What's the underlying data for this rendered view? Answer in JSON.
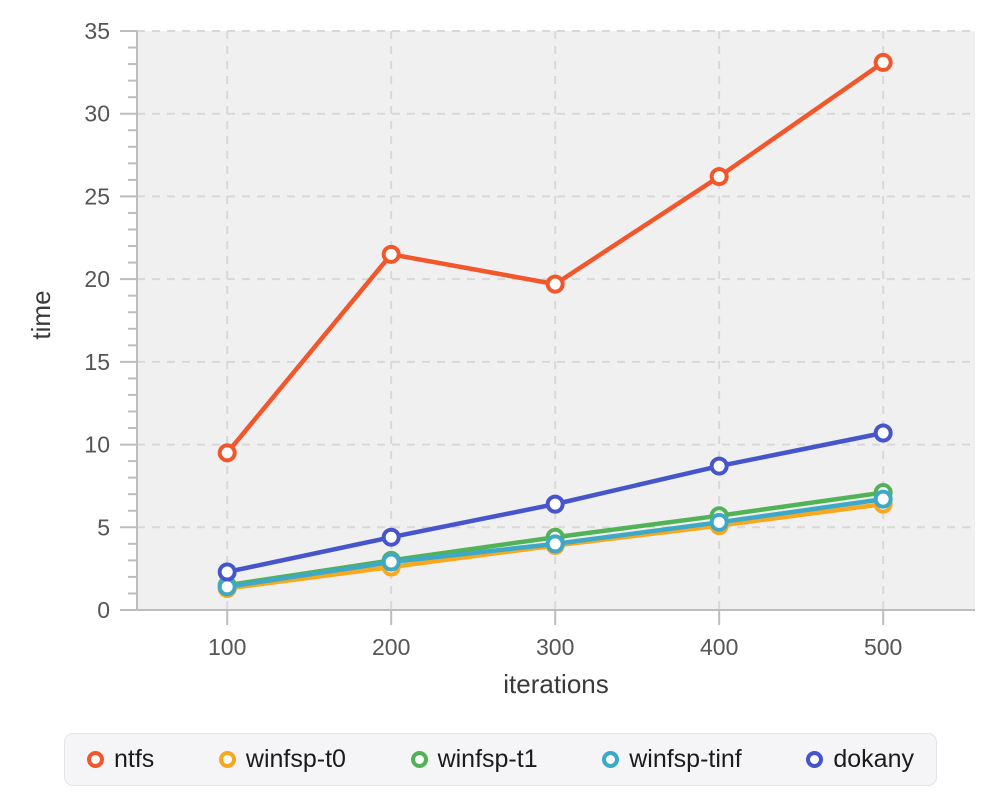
{
  "chart_data": {
    "type": "line",
    "title": "",
    "xlabel": "iterations",
    "ylabel": "time",
    "x": [
      100,
      200,
      300,
      400,
      500
    ],
    "series": [
      {
        "name": "ntfs",
        "color": "#F2562A",
        "values": [
          9.5,
          21.5,
          19.7,
          26.2,
          33.1
        ]
      },
      {
        "name": "winfsp-t0",
        "color": "#F8A81D",
        "values": [
          1.3,
          2.6,
          3.9,
          5.1,
          6.4
        ]
      },
      {
        "name": "winfsp-t1",
        "color": "#52B356",
        "values": [
          1.5,
          3.0,
          4.4,
          5.7,
          7.1
        ]
      },
      {
        "name": "winfsp-tinf",
        "color": "#3DA8C8",
        "values": [
          1.4,
          2.9,
          4.0,
          5.3,
          6.7
        ]
      },
      {
        "name": "dokany",
        "color": "#4655CC",
        "values": [
          2.3,
          4.4,
          6.4,
          8.7,
          10.7
        ]
      }
    ],
    "xlim": [
      45,
      556
    ],
    "ylim": [
      0,
      35
    ],
    "yticks": [
      0,
      5,
      10,
      15,
      20,
      25,
      30,
      35
    ],
    "y_minor_step": 1,
    "xticks": [
      100,
      200,
      300,
      400,
      500
    ],
    "grid": true,
    "grid_style": "dashed",
    "legend_position": "bottom",
    "marker": "circle-open",
    "plot_bg": "#F0F0F0",
    "grid_color": "#D8D8D8",
    "axis_color": "#BDBDBD",
    "tick_label_color": "#555555",
    "axis_title_color": "#3A3A3A"
  }
}
